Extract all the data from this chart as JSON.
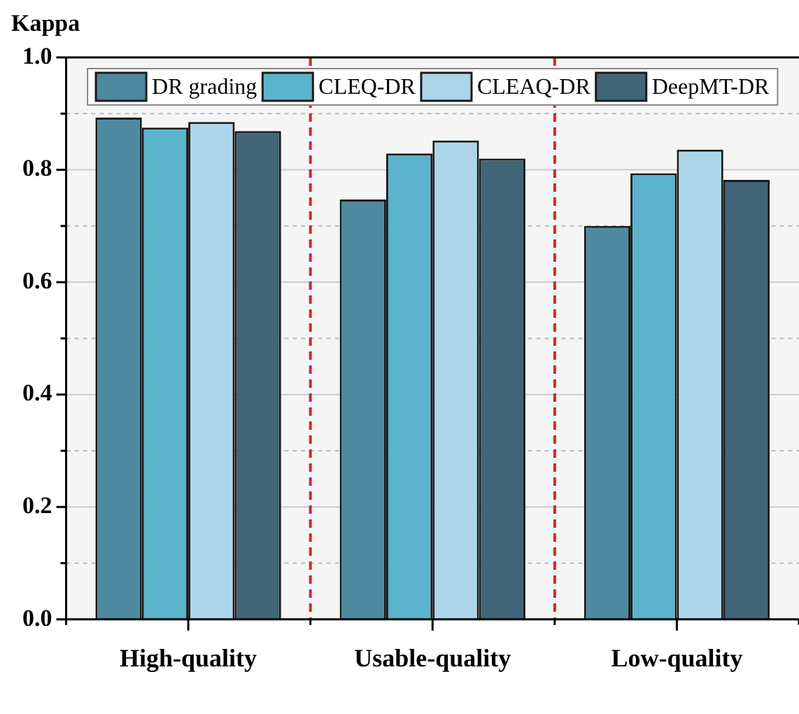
{
  "chart_data": {
    "type": "bar",
    "ylabel": "Kappa",
    "categories": [
      "High-quality",
      "Usable-quality",
      "Low-quality"
    ],
    "series": [
      {
        "name": "DR grading",
        "color": "#4e8aa0",
        "values": [
          0.893,
          0.747,
          0.7
        ]
      },
      {
        "name": "CLEQ-DR",
        "color": "#5cb3cc",
        "values": [
          0.875,
          0.829,
          0.794
        ]
      },
      {
        "name": "CLEAQ-DR",
        "color": "#acd5ea",
        "values": [
          0.885,
          0.852,
          0.836
        ]
      },
      {
        "name": "DeepMT-DR",
        "color": "#416477",
        "values": [
          0.869,
          0.82,
          0.782
        ]
      }
    ],
    "ylim": [
      0,
      1
    ],
    "yticks": [
      {
        "value": 0,
        "label": "0.0"
      },
      {
        "value": 0.1,
        "label": null
      },
      {
        "value": 0.2,
        "label": "0.2"
      },
      {
        "value": 0.3,
        "label": null
      },
      {
        "value": 0.4,
        "label": "0.4"
      },
      {
        "value": 0.5,
        "label": null
      },
      {
        "value": 0.6,
        "label": "0.6"
      },
      {
        "value": 0.7,
        "label": null
      },
      {
        "value": 0.8,
        "label": "0.8"
      },
      {
        "value": 0.9,
        "label": null
      },
      {
        "value": 1,
        "label": "1.0"
      }
    ],
    "grid": "y",
    "legend": "top"
  }
}
